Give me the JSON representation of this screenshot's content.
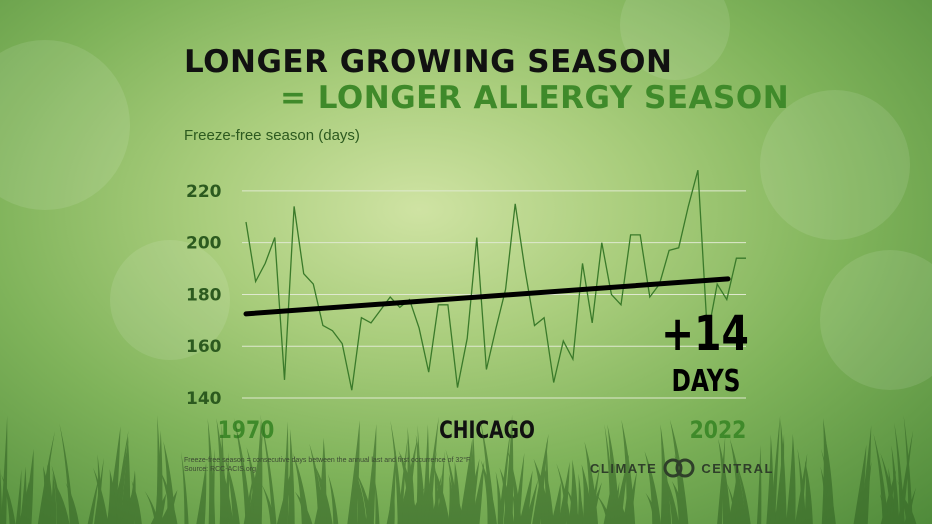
{
  "title_line1": "LONGER GROWING SEASON",
  "title_line2": "= LONGER ALLERGY SEASON",
  "chart_data": {
    "type": "line",
    "ylabel": "Freeze-free season (days)",
    "ylim": [
      140,
      230
    ],
    "yticks": [
      140,
      160,
      180,
      200,
      220
    ],
    "x_start_label": "1970",
    "x_end_label": "2022",
    "center_label": "CHICAGO",
    "x": [
      1970,
      1971,
      1972,
      1973,
      1974,
      1975,
      1976,
      1977,
      1978,
      1979,
      1980,
      1981,
      1982,
      1983,
      1984,
      1985,
      1986,
      1987,
      1988,
      1989,
      1990,
      1991,
      1992,
      1993,
      1994,
      1995,
      1996,
      1997,
      1998,
      1999,
      2000,
      2001,
      2002,
      2003,
      2004,
      2005,
      2006,
      2007,
      2008,
      2009,
      2010,
      2011,
      2012,
      2013,
      2014,
      2015,
      2016,
      2017,
      2018,
      2019,
      2020,
      2021,
      2022
    ],
    "series": [
      {
        "values": [
          208,
          185,
          192,
          202,
          147,
          214,
          188,
          184,
          168,
          166,
          161,
          143,
          171,
          169,
          174,
          179,
          175,
          178,
          167,
          150,
          176,
          176,
          144,
          163,
          202,
          151,
          167,
          182,
          215,
          190,
          168,
          171,
          146,
          162,
          155,
          192,
          169,
          200,
          180,
          176,
          203,
          203,
          179,
          184,
          197,
          198,
          214,
          228,
          164,
          184,
          178,
          194,
          194
        ]
      }
    ],
    "trend": {
      "start": 172.5,
      "end": 186.5
    },
    "annotation_value": "+14",
    "annotation_unit": "DAYS",
    "grid": true,
    "colors": {
      "line": "#3a7a2a",
      "trend": "#000000",
      "grid": "#dfe9cf",
      "label": "#2c5a1f"
    }
  },
  "footnote_line1": "Freeze-free season = consecutive days between the annual last and first occurrence of 32°F",
  "footnote_line2": "Source: RCC-ACIS.org",
  "logo": {
    "left": "CLIMATE",
    "right": "CENTRAL",
    "icon": "interlocking-rings-icon"
  }
}
